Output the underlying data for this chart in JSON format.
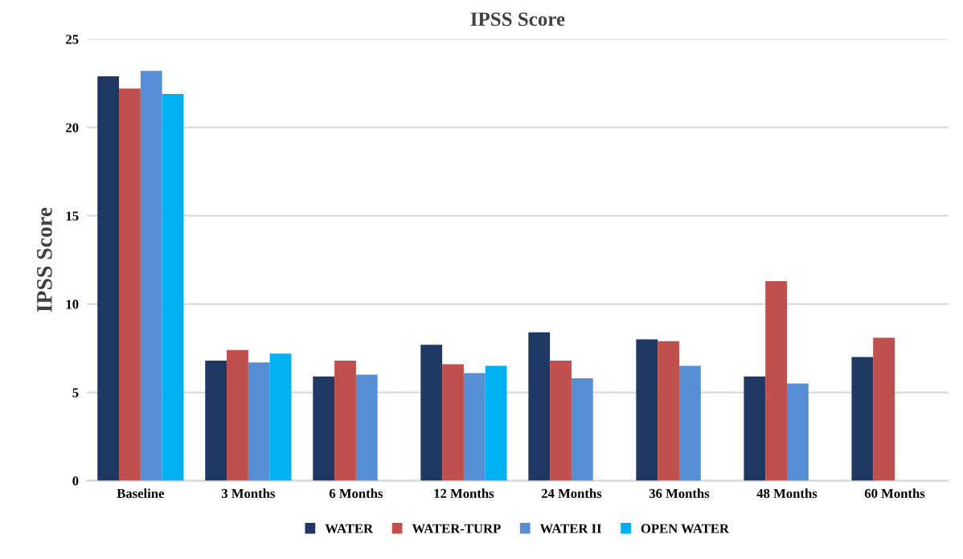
{
  "chart_data": {
    "type": "bar",
    "title": "IPSS Score",
    "ylabel": "IPSS Score",
    "categories": [
      "Baseline",
      "3 Months",
      "6 Months",
      "12 Months",
      "24 Months",
      "36 Months",
      "48 Months",
      "60 Months"
    ],
    "series": [
      {
        "name": "WATER",
        "color": "#1f3864",
        "values": [
          22.9,
          6.8,
          5.9,
          7.7,
          8.4,
          8.0,
          5.9,
          7.0
        ]
      },
      {
        "name": "WATER-TURP",
        "color": "#c0504d",
        "values": [
          22.2,
          7.4,
          6.8,
          6.6,
          6.8,
          7.9,
          11.3,
          8.1
        ]
      },
      {
        "name": "WATER II",
        "color": "#558ed5",
        "values": [
          23.2,
          6.7,
          6.0,
          6.1,
          5.8,
          6.5,
          5.5,
          null
        ]
      },
      {
        "name": "OPEN WATER",
        "color": "#00b0f0",
        "values": [
          21.9,
          7.2,
          null,
          6.5,
          null,
          null,
          null,
          null
        ]
      }
    ],
    "ylim": [
      0,
      25
    ],
    "yticks": [
      0,
      5,
      10,
      15,
      20,
      25
    ],
    "grid": "y",
    "legend": "bottom"
  }
}
